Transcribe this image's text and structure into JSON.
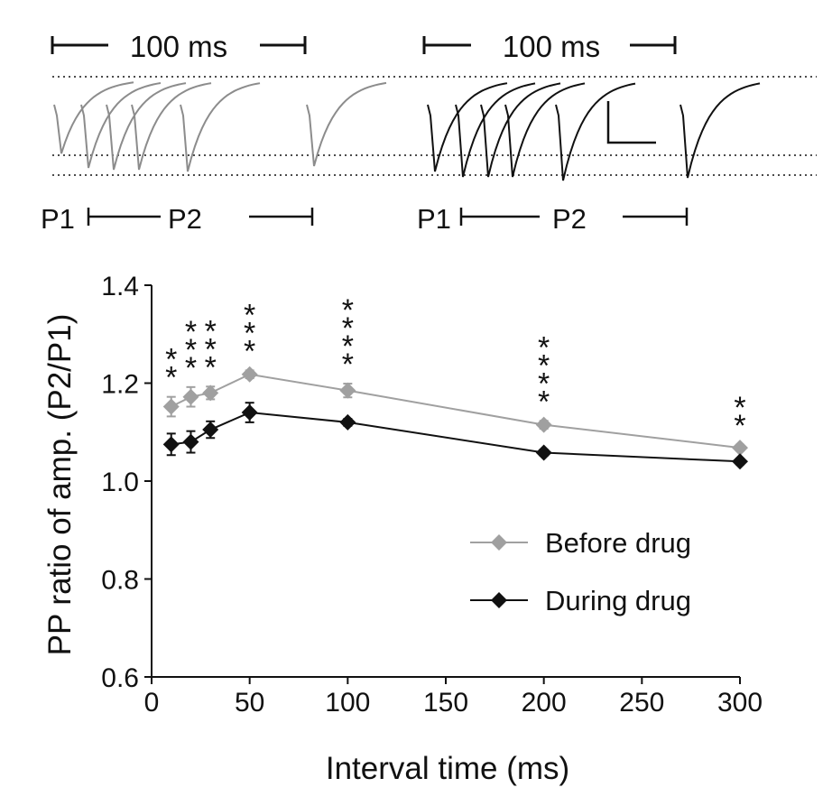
{
  "traces": {
    "scale_label_left": "100 ms",
    "scale_label_right": "100 ms",
    "p1_label_left": "P1",
    "p2_label_left": "P2",
    "p1_label_right": "P1",
    "p2_label_right": "P2",
    "left_color": "#8c8c8c",
    "right_color": "#111111"
  },
  "chart_data": {
    "type": "line",
    "title": "",
    "xlabel": "Interval time (ms)",
    "ylabel": "PP ratio of amp. (P2/P1)",
    "xlim": [
      0,
      300
    ],
    "ylim": [
      0.6,
      1.4
    ],
    "x_ticks": [
      0,
      50,
      100,
      150,
      200,
      250,
      300
    ],
    "y_ticks": [
      0.6,
      0.8,
      1.0,
      1.2,
      1.4
    ],
    "x_tick_labels": [
      "0",
      "50",
      "100",
      "150",
      "200",
      "250",
      "300"
    ],
    "y_tick_labels": [
      "0.6",
      "0.8",
      "1.0",
      "1.2",
      "1.4"
    ],
    "x": [
      10,
      20,
      30,
      50,
      100,
      200,
      300
    ],
    "series": [
      {
        "name": "Before drug",
        "color": "#a0a0a0",
        "values": [
          1.152,
          1.172,
          1.18,
          1.218,
          1.185,
          1.115,
          1.068
        ],
        "errors": [
          0.02,
          0.02,
          0.013,
          0.008,
          0.014,
          0.008,
          0.006
        ]
      },
      {
        "name": "During drug",
        "color": "#111111",
        "values": [
          1.075,
          1.08,
          1.105,
          1.14,
          1.12,
          1.058,
          1.04
        ],
        "errors": [
          0.022,
          0.022,
          0.017,
          0.02,
          0.007,
          0.006,
          0.006
        ]
      }
    ],
    "significance": [
      "**",
      "***",
      "***",
      "***",
      "****",
      "****",
      "**"
    ],
    "legend": {
      "position": "bottom-right",
      "entries": [
        "Before drug",
        "During drug"
      ]
    }
  }
}
